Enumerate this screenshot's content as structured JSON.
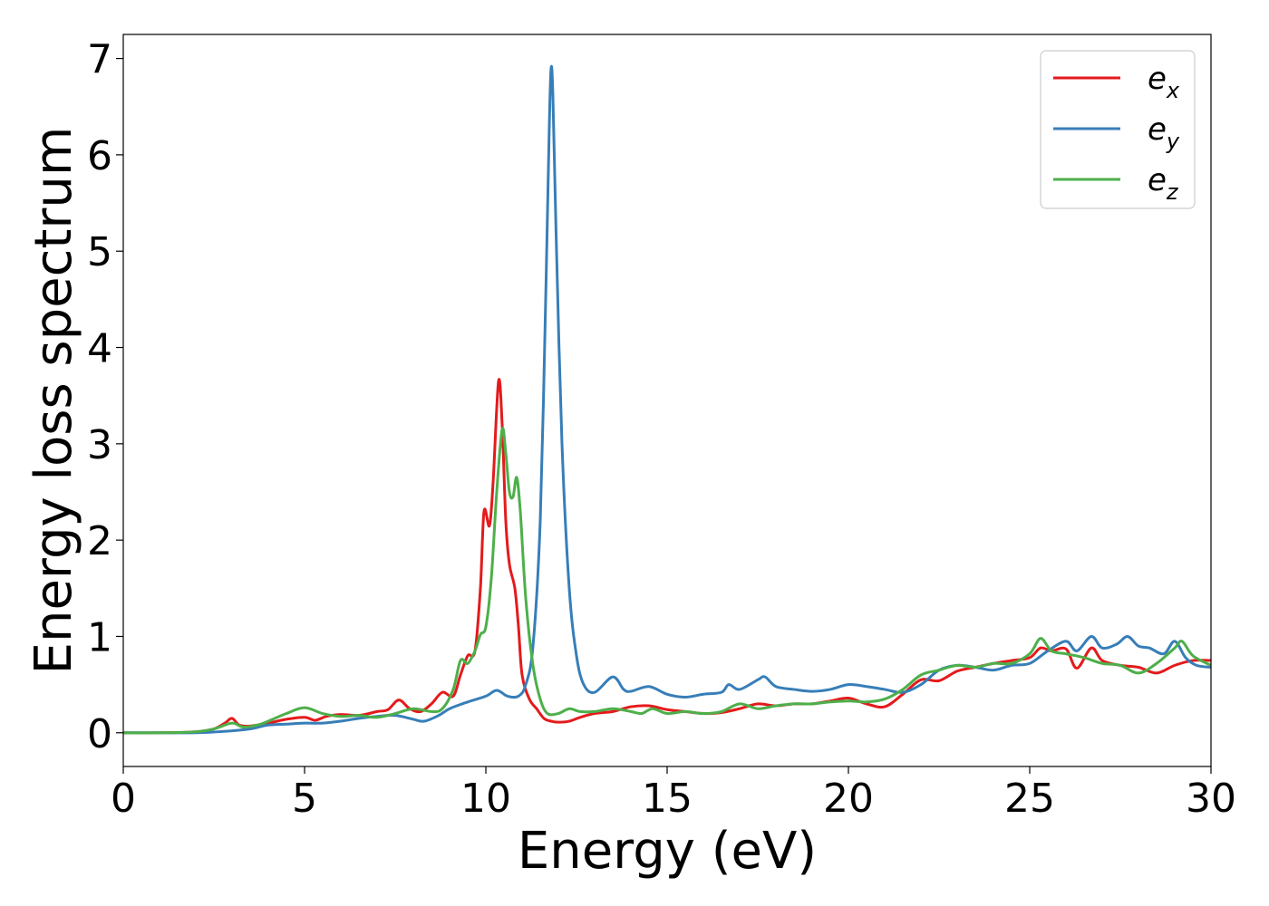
{
  "chart_data": {
    "type": "line",
    "xlabel": "Energy (eV)",
    "ylabel": "Energy loss spectrum",
    "xlim": [
      0,
      30
    ],
    "ylim": [
      -0.35,
      7.25
    ],
    "xticks": [
      0,
      5,
      10,
      15,
      20,
      25,
      30
    ],
    "xtick_labels": [
      "0",
      "5",
      "10",
      "15",
      "20",
      "25",
      "30"
    ],
    "yticks": [
      0,
      1,
      2,
      3,
      4,
      5,
      6,
      7
    ],
    "ytick_labels": [
      "0",
      "1",
      "2",
      "3",
      "4",
      "5",
      "6",
      "7"
    ],
    "grid": false,
    "legend_position": "top-right",
    "series": [
      {
        "name": "e_x",
        "legend_base": "e",
        "legend_sub": "x",
        "color": "#e41a1c",
        "points": [
          [
            0,
            0
          ],
          [
            1,
            0
          ],
          [
            2,
            0.01
          ],
          [
            2.5,
            0.04
          ],
          [
            2.8,
            0.1
          ],
          [
            3.0,
            0.15
          ],
          [
            3.2,
            0.08
          ],
          [
            3.5,
            0.07
          ],
          [
            4,
            0.1
          ],
          [
            4.5,
            0.14
          ],
          [
            5,
            0.16
          ],
          [
            5.3,
            0.13
          ],
          [
            5.6,
            0.17
          ],
          [
            6,
            0.19
          ],
          [
            6.5,
            0.18
          ],
          [
            7,
            0.22
          ],
          [
            7.3,
            0.24
          ],
          [
            7.6,
            0.34
          ],
          [
            7.9,
            0.25
          ],
          [
            8.2,
            0.22
          ],
          [
            8.5,
            0.3
          ],
          [
            8.8,
            0.42
          ],
          [
            9.1,
            0.38
          ],
          [
            9.3,
            0.6
          ],
          [
            9.5,
            0.8
          ],
          [
            9.7,
            0.85
          ],
          [
            9.85,
            1.5
          ],
          [
            9.95,
            2.3
          ],
          [
            10.1,
            2.15
          ],
          [
            10.2,
            2.6
          ],
          [
            10.35,
            3.65
          ],
          [
            10.45,
            3.2
          ],
          [
            10.55,
            2.2
          ],
          [
            10.65,
            1.75
          ],
          [
            10.8,
            1.5
          ],
          [
            10.9,
            1.1
          ],
          [
            11.0,
            0.6
          ],
          [
            11.2,
            0.35
          ],
          [
            11.4,
            0.25
          ],
          [
            11.6,
            0.15
          ],
          [
            11.8,
            0.12
          ],
          [
            12,
            0.11
          ],
          [
            12.3,
            0.12
          ],
          [
            12.6,
            0.16
          ],
          [
            13,
            0.2
          ],
          [
            13.5,
            0.22
          ],
          [
            14,
            0.27
          ],
          [
            14.5,
            0.28
          ],
          [
            15,
            0.24
          ],
          [
            15.5,
            0.22
          ],
          [
            16,
            0.2
          ],
          [
            16.5,
            0.21
          ],
          [
            17,
            0.25
          ],
          [
            17.5,
            0.3
          ],
          [
            18,
            0.28
          ],
          [
            18.5,
            0.3
          ],
          [
            19,
            0.3
          ],
          [
            19.5,
            0.33
          ],
          [
            20,
            0.36
          ],
          [
            20.5,
            0.3
          ],
          [
            21,
            0.27
          ],
          [
            21.5,
            0.4
          ],
          [
            22,
            0.55
          ],
          [
            22.5,
            0.54
          ],
          [
            23,
            0.64
          ],
          [
            23.5,
            0.68
          ],
          [
            24,
            0.72
          ],
          [
            24.5,
            0.75
          ],
          [
            25,
            0.78
          ],
          [
            25.3,
            0.88
          ],
          [
            25.6,
            0.85
          ],
          [
            26,
            0.87
          ],
          [
            26.3,
            0.67
          ],
          [
            26.7,
            0.88
          ],
          [
            27,
            0.75
          ],
          [
            27.5,
            0.7
          ],
          [
            28,
            0.68
          ],
          [
            28.5,
            0.62
          ],
          [
            29,
            0.7
          ],
          [
            29.5,
            0.75
          ],
          [
            30,
            0.75
          ]
        ]
      },
      {
        "name": "e_y",
        "legend_base": "e",
        "legend_sub": "y",
        "color": "#377eb8",
        "points": [
          [
            0,
            0
          ],
          [
            1,
            0
          ],
          [
            2,
            0
          ],
          [
            3,
            0.02
          ],
          [
            3.5,
            0.04
          ],
          [
            4,
            0.08
          ],
          [
            4.5,
            0.09
          ],
          [
            5,
            0.1
          ],
          [
            5.5,
            0.1
          ],
          [
            6,
            0.12
          ],
          [
            6.5,
            0.15
          ],
          [
            7,
            0.17
          ],
          [
            7.5,
            0.18
          ],
          [
            8,
            0.14
          ],
          [
            8.3,
            0.12
          ],
          [
            8.7,
            0.18
          ],
          [
            9,
            0.25
          ],
          [
            9.5,
            0.32
          ],
          [
            10,
            0.38
          ],
          [
            10.3,
            0.44
          ],
          [
            10.6,
            0.38
          ],
          [
            10.9,
            0.38
          ],
          [
            11.1,
            0.5
          ],
          [
            11.3,
            0.9
          ],
          [
            11.5,
            2.2
          ],
          [
            11.65,
            4.5
          ],
          [
            11.75,
            6.3
          ],
          [
            11.8,
            6.9
          ],
          [
            11.85,
            6.6
          ],
          [
            11.95,
            5.0
          ],
          [
            12.1,
            3.0
          ],
          [
            12.3,
            1.5
          ],
          [
            12.5,
            0.8
          ],
          [
            12.7,
            0.5
          ],
          [
            13,
            0.42
          ],
          [
            13.5,
            0.58
          ],
          [
            13.8,
            0.45
          ],
          [
            14,
            0.43
          ],
          [
            14.5,
            0.48
          ],
          [
            15,
            0.4
          ],
          [
            15.5,
            0.37
          ],
          [
            16,
            0.4
          ],
          [
            16.5,
            0.42
          ],
          [
            16.7,
            0.5
          ],
          [
            17,
            0.45
          ],
          [
            17.5,
            0.55
          ],
          [
            17.7,
            0.58
          ],
          [
            18,
            0.48
          ],
          [
            18.5,
            0.45
          ],
          [
            19,
            0.43
          ],
          [
            19.5,
            0.45
          ],
          [
            20,
            0.5
          ],
          [
            20.5,
            0.48
          ],
          [
            21,
            0.45
          ],
          [
            21.5,
            0.42
          ],
          [
            22,
            0.5
          ],
          [
            22.5,
            0.65
          ],
          [
            23,
            0.7
          ],
          [
            23.5,
            0.68
          ],
          [
            24,
            0.65
          ],
          [
            24.5,
            0.7
          ],
          [
            25,
            0.72
          ],
          [
            25.5,
            0.85
          ],
          [
            26,
            0.95
          ],
          [
            26.3,
            0.85
          ],
          [
            26.7,
            1.0
          ],
          [
            27,
            0.88
          ],
          [
            27.4,
            0.92
          ],
          [
            27.7,
            1.0
          ],
          [
            28,
            0.9
          ],
          [
            28.3,
            0.88
          ],
          [
            28.7,
            0.82
          ],
          [
            29,
            0.95
          ],
          [
            29.3,
            0.78
          ],
          [
            29.6,
            0.7
          ],
          [
            30,
            0.68
          ]
        ]
      },
      {
        "name": "e_z",
        "legend_base": "e",
        "legend_sub": "z",
        "color": "#4daf4a",
        "points": [
          [
            0,
            0
          ],
          [
            1,
            0
          ],
          [
            2,
            0.01
          ],
          [
            2.5,
            0.04
          ],
          [
            3,
            0.1
          ],
          [
            3.3,
            0.06
          ],
          [
            3.7,
            0.08
          ],
          [
            4,
            0.12
          ],
          [
            4.5,
            0.2
          ],
          [
            5,
            0.26
          ],
          [
            5.5,
            0.2
          ],
          [
            6,
            0.17
          ],
          [
            6.5,
            0.18
          ],
          [
            7,
            0.16
          ],
          [
            7.5,
            0.2
          ],
          [
            8,
            0.25
          ],
          [
            8.5,
            0.22
          ],
          [
            8.8,
            0.25
          ],
          [
            9.1,
            0.45
          ],
          [
            9.3,
            0.75
          ],
          [
            9.5,
            0.72
          ],
          [
            9.7,
            0.85
          ],
          [
            9.85,
            1.02
          ],
          [
            10.0,
            1.1
          ],
          [
            10.15,
            1.6
          ],
          [
            10.3,
            2.5
          ],
          [
            10.45,
            3.15
          ],
          [
            10.55,
            2.9
          ],
          [
            10.65,
            2.5
          ],
          [
            10.75,
            2.45
          ],
          [
            10.85,
            2.65
          ],
          [
            10.95,
            2.3
          ],
          [
            11.1,
            1.4
          ],
          [
            11.3,
            0.7
          ],
          [
            11.5,
            0.35
          ],
          [
            11.7,
            0.2
          ],
          [
            12,
            0.2
          ],
          [
            12.3,
            0.25
          ],
          [
            12.6,
            0.22
          ],
          [
            13,
            0.22
          ],
          [
            13.5,
            0.25
          ],
          [
            14,
            0.22
          ],
          [
            14.3,
            0.2
          ],
          [
            14.6,
            0.25
          ],
          [
            15,
            0.2
          ],
          [
            15.5,
            0.22
          ],
          [
            16,
            0.2
          ],
          [
            16.5,
            0.22
          ],
          [
            17,
            0.3
          ],
          [
            17.5,
            0.25
          ],
          [
            18,
            0.28
          ],
          [
            18.5,
            0.3
          ],
          [
            19,
            0.3
          ],
          [
            19.5,
            0.32
          ],
          [
            20,
            0.33
          ],
          [
            20.5,
            0.32
          ],
          [
            21,
            0.35
          ],
          [
            21.5,
            0.45
          ],
          [
            22,
            0.6
          ],
          [
            22.5,
            0.65
          ],
          [
            23,
            0.7
          ],
          [
            23.5,
            0.68
          ],
          [
            24,
            0.72
          ],
          [
            24.5,
            0.72
          ],
          [
            25,
            0.82
          ],
          [
            25.3,
            0.98
          ],
          [
            25.6,
            0.85
          ],
          [
            26,
            0.82
          ],
          [
            26.5,
            0.78
          ],
          [
            27,
            0.72
          ],
          [
            27.5,
            0.7
          ],
          [
            28,
            0.62
          ],
          [
            28.5,
            0.72
          ],
          [
            29,
            0.88
          ],
          [
            29.2,
            0.95
          ],
          [
            29.5,
            0.8
          ],
          [
            30,
            0.7
          ]
        ]
      }
    ]
  }
}
